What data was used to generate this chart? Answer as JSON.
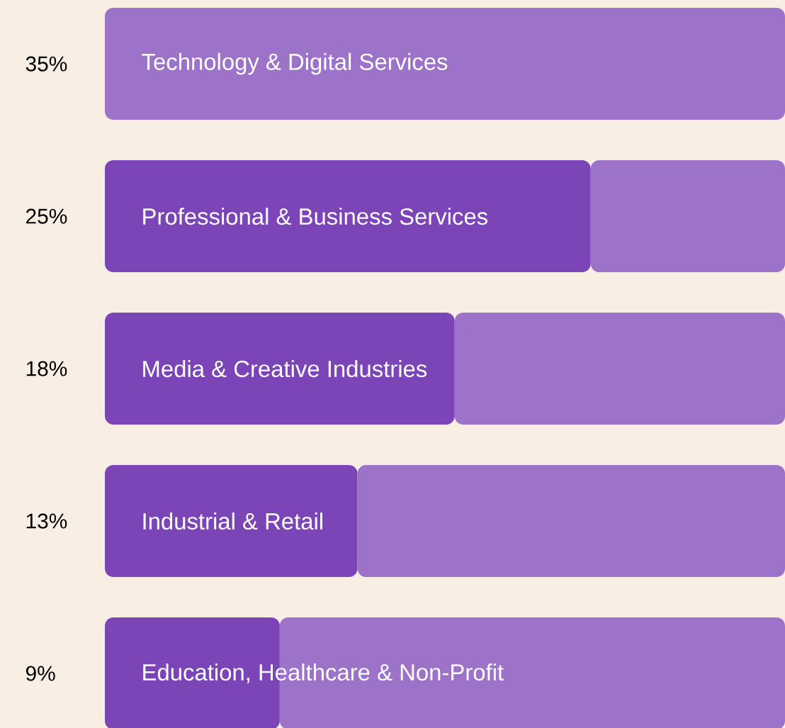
{
  "chart_data": {
    "type": "bar",
    "orientation": "horizontal",
    "stacked": true,
    "categories": [
      "Technology & Digital Services",
      "Professional & Business Services",
      "Media & Creative Industries",
      "Industrial & Retail",
      "Education, Healthcare & Non-Profit"
    ],
    "series": [
      {
        "colors": [
          "#9c73c9",
          "#7b45b8",
          "#7b45b8",
          "#7b45b8",
          "#7b45b8"
        ],
        "values": [
          35,
          25,
          18,
          13,
          9
        ],
        "value_labels": [
          "35%",
          "25%",
          "18%",
          "13%",
          "9%"
        ]
      },
      {
        "color": "#9c73c9",
        "values": [
          0,
          10,
          17,
          22,
          26
        ]
      }
    ],
    "xlim": [
      0,
      35
    ]
  }
}
